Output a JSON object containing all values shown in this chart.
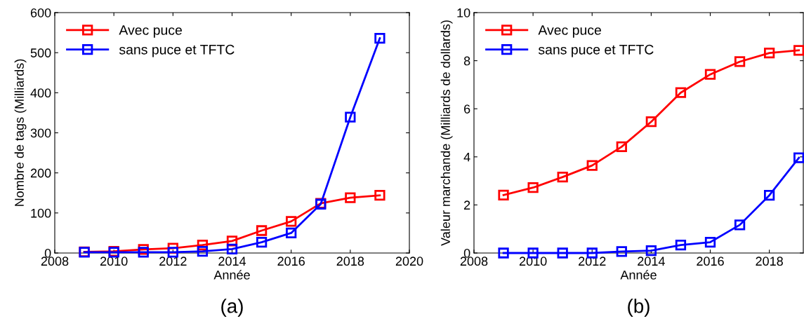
{
  "chart_data": [
    {
      "type": "line",
      "xlabel": "Année",
      "ylabel": "Nombre de tags (Milliards)",
      "annotations": [
        "(a)"
      ],
      "x": [
        2009,
        2010,
        2011,
        2012,
        2013,
        2014,
        2015,
        2016,
        2017,
        2018,
        2019
      ],
      "series": [
        {
          "name": "Avec puce",
          "color": "#ff0000",
          "values": [
            3,
            4,
            9,
            12,
            20,
            30,
            56,
            79,
            124,
            138,
            144
          ]
        },
        {
          "name": "sans puce et TFTC",
          "color": "#0000ff",
          "values": [
            2,
            2,
            2,
            2,
            4,
            10,
            27,
            50,
            122,
            339,
            536
          ]
        }
      ],
      "xlim": [
        2008,
        2020
      ],
      "xticks": [
        2008,
        2010,
        2012,
        2014,
        2016,
        2018,
        2020
      ],
      "ylim": [
        0,
        600
      ],
      "yticks": [
        0,
        100,
        200,
        300,
        400,
        500,
        600
      ],
      "marker": "square",
      "line_style": "solid",
      "legend": "top left",
      "grid": false
    },
    {
      "type": "line",
      "xlabel": "Année",
      "ylabel": "Valeur marchande (Milliards de dollards)",
      "annotations": [
        "(b)"
      ],
      "x": [
        2009,
        2010,
        2011,
        2012,
        2013,
        2014,
        2015,
        2016,
        2017,
        2018,
        2019
      ],
      "series": [
        {
          "name": "Avec puce",
          "color": "#ff0000",
          "values": [
            2.41,
            2.72,
            3.16,
            3.64,
            4.42,
            5.46,
            6.67,
            7.43,
            7.96,
            8.32,
            8.43
          ]
        },
        {
          "name": "sans puce et TFTC",
          "color": "#0000ff",
          "values": [
            0,
            0,
            0,
            0,
            0.06,
            0.1,
            0.33,
            0.45,
            1.17,
            2.4,
            3.96
          ]
        }
      ],
      "xlim": [
        2008,
        2019.15
      ],
      "xticks": [
        2008,
        2010,
        2012,
        2014,
        2016,
        2018
      ],
      "ylim": [
        0,
        10
      ],
      "yticks": [
        0,
        2,
        4,
        6,
        8,
        10
      ],
      "marker": "square",
      "line_style": "solid",
      "legend": "top left",
      "grid": false
    }
  ]
}
